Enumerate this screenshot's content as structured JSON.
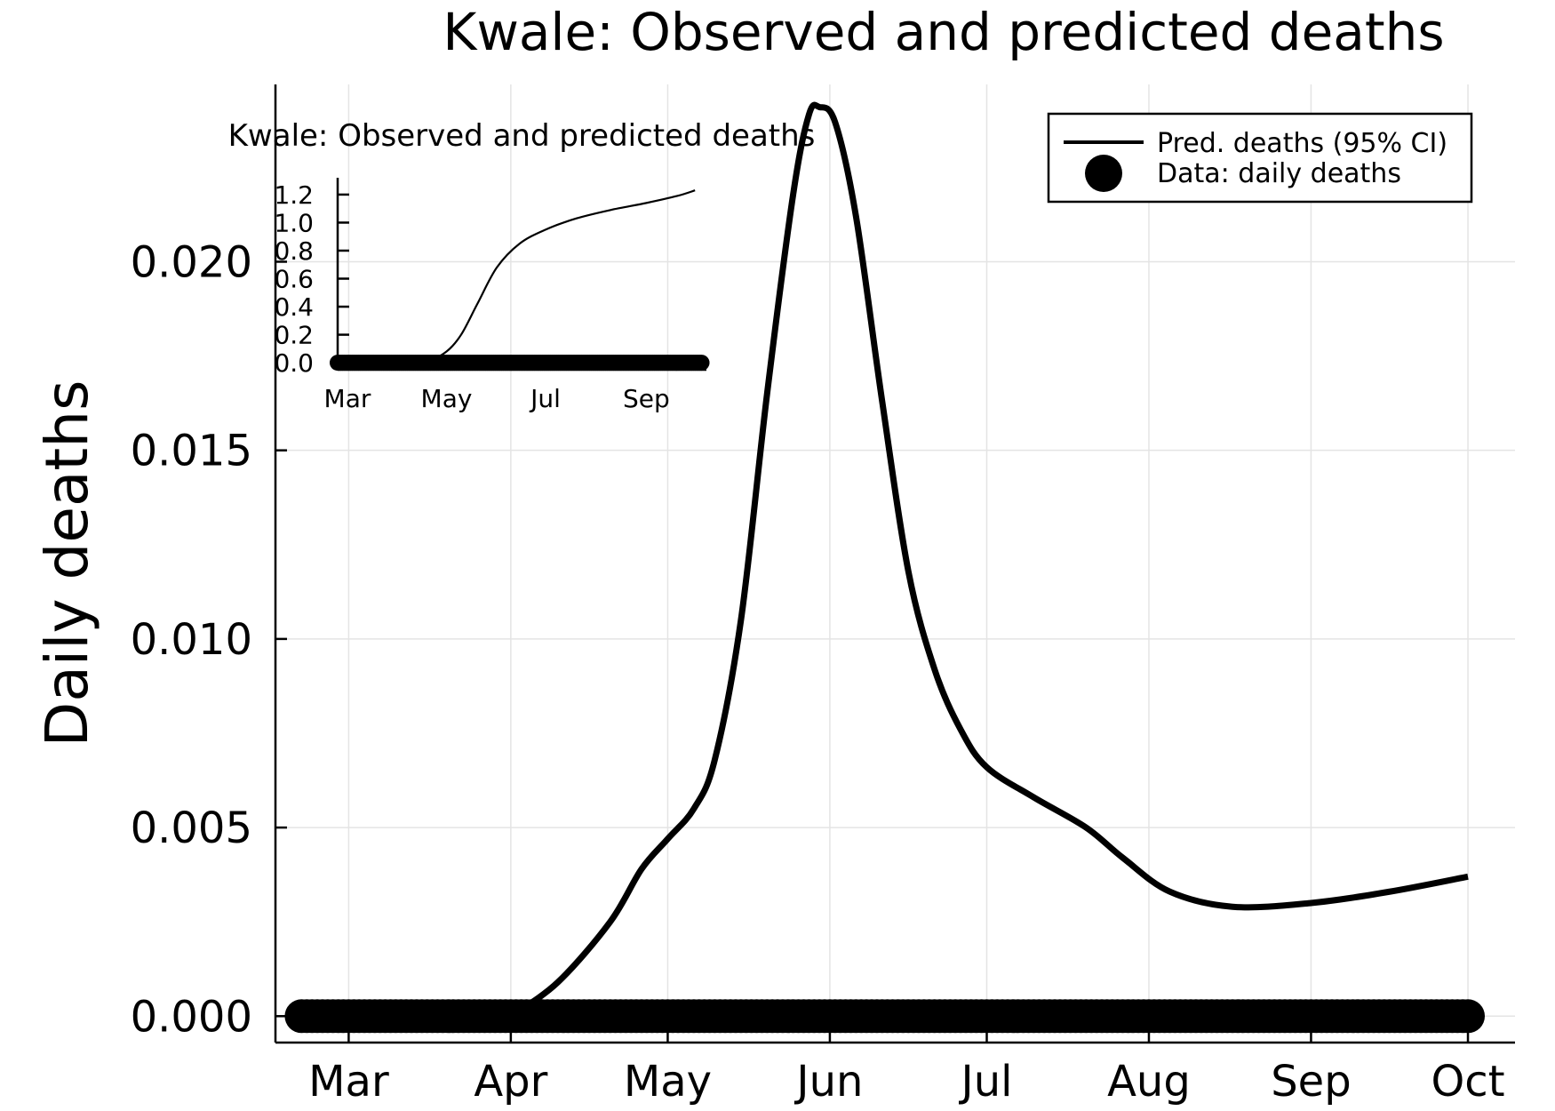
{
  "chart_data": [
    {
      "type": "line",
      "title": "Kwale: Observed and predicted deaths",
      "xlabel": "",
      "ylabel": "Daily deaths",
      "x_ticks": [
        "Mar",
        "Apr",
        "May",
        "Jun",
        "Jul",
        "Aug",
        "Sep",
        "Oct"
      ],
      "x_tick_dates": [
        "2020-03-01",
        "2020-04-01",
        "2020-05-01",
        "2020-06-01",
        "2020-07-01",
        "2020-08-01",
        "2020-09-01",
        "2020-10-01"
      ],
      "y_ticks": [
        "0.000",
        "0.005",
        "0.010",
        "0.015",
        "0.020"
      ],
      "ylim": [
        -0.0007,
        0.0247
      ],
      "xlim": [
        "2020-02-16",
        "2020-10-10"
      ],
      "grid": true,
      "legend_position": "top-right",
      "series": [
        {
          "name": "Pred. deaths (95% CI)",
          "style": "line",
          "color": "#000000",
          "x": [
            "2020-04-01",
            "2020-04-10",
            "2020-04-20",
            "2020-04-26",
            "2020-05-01",
            "2020-05-06",
            "2020-05-10",
            "2020-05-15",
            "2020-05-20",
            "2020-05-25",
            "2020-05-28",
            "2020-05-30",
            "2020-06-02",
            "2020-06-06",
            "2020-06-11",
            "2020-06-16",
            "2020-06-21",
            "2020-06-26",
            "2020-07-01",
            "2020-07-10",
            "2020-07-20",
            "2020-07-27",
            "2020-08-05",
            "2020-08-17",
            "2020-09-01",
            "2020-09-16",
            "2020-10-01"
          ],
          "y": [
            0.0,
            0.0009,
            0.0025,
            0.0039,
            0.0047,
            0.0055,
            0.0068,
            0.0105,
            0.0165,
            0.0218,
            0.0239,
            0.0241,
            0.0237,
            0.0212,
            0.0163,
            0.0118,
            0.0092,
            0.0076,
            0.0066,
            0.0058,
            0.005,
            0.0042,
            0.0033,
            0.0029,
            0.003,
            0.0033,
            0.0037
          ]
        },
        {
          "name": "Data: daily deaths",
          "style": "scatter",
          "color": "#000000",
          "x_range": [
            "2020-02-21",
            "2020-10-01"
          ],
          "y": 0
        }
      ]
    },
    {
      "type": "line",
      "title": "Kwale: Observed and predicted deaths",
      "xlabel": "",
      "ylabel": "",
      "x_ticks": [
        "Mar",
        "May",
        "Jul",
        "Sep"
      ],
      "y_ticks": [
        "0.0",
        "0.2",
        "0.4",
        "0.6",
        "0.8",
        "1.0",
        "1.2"
      ],
      "ylim": [
        -0.05,
        1.32
      ],
      "xlim": [
        "2020-02-24",
        "2020-10-08"
      ],
      "series": [
        {
          "name": "",
          "style": "line",
          "color": "#000000",
          "x": [
            "2020-04-01",
            "2020-04-20",
            "2020-05-01",
            "2020-05-10",
            "2020-05-20",
            "2020-06-01",
            "2020-06-15",
            "2020-07-01",
            "2020-07-20",
            "2020-08-10",
            "2020-09-01",
            "2020-09-20",
            "2020-10-01"
          ],
          "y": [
            0.0,
            0.02,
            0.08,
            0.2,
            0.42,
            0.68,
            0.85,
            0.95,
            1.03,
            1.09,
            1.14,
            1.19,
            1.23
          ]
        },
        {
          "name": "",
          "style": "scatter",
          "color": "#000000",
          "x_range": [
            "2020-02-24",
            "2020-10-05"
          ],
          "y": 0
        }
      ]
    }
  ]
}
